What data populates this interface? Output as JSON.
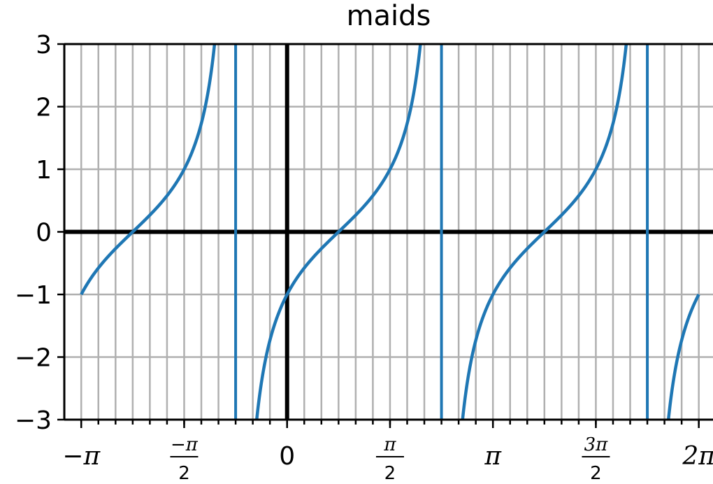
{
  "chart_data": {
    "type": "line",
    "title": "maids",
    "function": "tan(x - pi/4)",
    "xlim": [
      -3.4,
      6.5
    ],
    "ylim": [
      -3,
      3
    ],
    "x_range": [
      -3.14159,
      6.28318
    ],
    "asymptotes": [
      -0.7854,
      2.3562,
      5.4978
    ],
    "series": [
      {
        "x_start": -3.14159,
        "x_end": 6.28318,
        "expression": "tan(x - pi/4)",
        "color": "#1f77b4"
      }
    ],
    "grid": true,
    "minor_grid_step": 0.2618,
    "x_ticks": [
      {
        "value": -3.14159,
        "label": "−π"
      },
      {
        "value": -1.5708,
        "label_num": "−π",
        "label_den": "2"
      },
      {
        "value": 0,
        "label": "0"
      },
      {
        "value": 1.5708,
        "label_num": "π",
        "label_den": "2"
      },
      {
        "value": 3.14159,
        "label": "π"
      },
      {
        "value": 4.71239,
        "label_num": "3π",
        "label_den": "2"
      },
      {
        "value": 6.28318,
        "label": "2π"
      }
    ],
    "y_ticks": [
      {
        "value": 3,
        "label": "3"
      },
      {
        "value": 2,
        "label": "2"
      },
      {
        "value": 1,
        "label": "1"
      },
      {
        "value": 0,
        "label": "0"
      },
      {
        "value": -1,
        "label": "−1"
      },
      {
        "value": -2,
        "label": "−2"
      },
      {
        "value": -3,
        "label": "−3"
      }
    ],
    "colors": {
      "line": "#1f77b4",
      "axis": "#000000",
      "grid": "#b0b0b0"
    }
  }
}
